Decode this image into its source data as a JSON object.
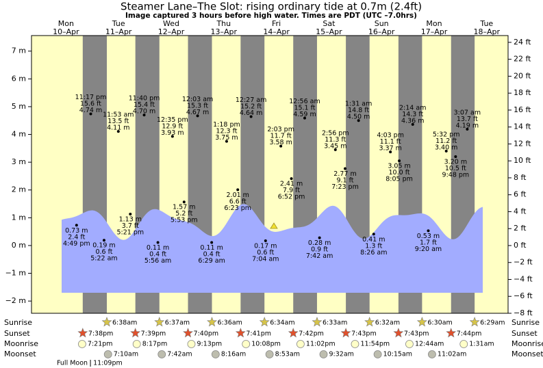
{
  "chart_data": {
    "type": "tide",
    "title": "Steamer Lane–The Slot: rising  ordinary tide at 0.7m (2.4ft)",
    "subtitle": "Image captured 3 hours before high water. Times are PDT (UTC –7.0hrs)",
    "ylim": [
      -2.44,
      7.56
    ],
    "yticks": [
      {
        "value": 7,
        "label": "7 m"
      },
      {
        "value": 6,
        "label": "6 m"
      },
      {
        "value": 5,
        "label": "5 m"
      },
      {
        "value": 4,
        "label": "4 m"
      },
      {
        "value": 3,
        "label": "3 m"
      },
      {
        "value": 2,
        "label": "2 m"
      },
      {
        "value": 1,
        "label": "1 m"
      },
      {
        "value": 0,
        "label": "0 m"
      },
      {
        "value": -1,
        "label": "−1 m"
      },
      {
        "value": -2,
        "label": "−2 m"
      }
    ],
    "y2lim": [
      -8,
      24.8
    ],
    "y2ticks": [
      {
        "value": 24,
        "label": "24 ft"
      },
      {
        "value": 22,
        "label": "22 ft"
      },
      {
        "value": 20,
        "label": "20 ft"
      },
      {
        "value": 18,
        "label": "18 ft"
      },
      {
        "value": 16,
        "label": "16 ft"
      },
      {
        "value": 14,
        "label": "14 ft"
      },
      {
        "value": 12,
        "label": "12 ft"
      },
      {
        "value": 10,
        "label": "10 ft"
      },
      {
        "value": 8,
        "label": "8 ft"
      },
      {
        "value": 6,
        "label": "6 ft"
      },
      {
        "value": 4,
        "label": "4 ft"
      },
      {
        "value": 2,
        "label": "2 ft"
      },
      {
        "value": 0,
        "label": "0 ft"
      },
      {
        "value": -2,
        "label": "−2 ft"
      },
      {
        "value": -4,
        "label": "−4 ft"
      },
      {
        "value": -6,
        "label": "−6 ft"
      },
      {
        "value": -8,
        "label": "−8 ft"
      }
    ],
    "colors": {
      "day": "#ffffc4",
      "night": "#858585",
      "water": "#a2acff",
      "date": "#e8141c",
      "sunrise": "#d6c44a",
      "sunset": "#e0502c",
      "moonrise": "#ffffc8",
      "moonset": "#bdbdae"
    },
    "row_labels": {
      "sunrise": "Sunrise",
      "sunset": "Sunset",
      "moonrise": "Moonrise",
      "moonset": "Moonset"
    },
    "full_moon_label": "Full Moon",
    "days": [
      {
        "weekday": "Mon",
        "date": "10–Apr",
        "sunset": "7:38pm",
        "moonrise": "7:21pm",
        "full_moon": "11:09pm",
        "tides": [
          {
            "time": "4:49 pm",
            "m": 0.73,
            "m_label": "0.73 m",
            "ft_label": "2.4 ft"
          },
          {
            "time": "11:17 pm",
            "m": 4.74,
            "m_label": "4.74 m",
            "ft_label": "15.6 ft"
          }
        ]
      },
      {
        "weekday": "Tue",
        "date": "11–Apr",
        "sunrise": "6:38am",
        "sunset": "7:39pm",
        "moonrise": "8:17pm",
        "moonset": "7:10am",
        "tides": [
          {
            "time": "5:22 am",
            "m": 0.19,
            "m_label": "0.19 m",
            "ft_label": "0.6 ft"
          },
          {
            "time": "11:53 am",
            "m": 4.11,
            "m_label": "4.11 m",
            "ft_label": "13.5 ft"
          },
          {
            "time": "5:21 pm",
            "m": 1.13,
            "m_label": "1.13 m",
            "ft_label": "3.7 ft"
          },
          {
            "time": "11:40 pm",
            "m": 4.7,
            "m_label": "4.70 m",
            "ft_label": "15.4 ft"
          }
        ]
      },
      {
        "weekday": "Wed",
        "date": "12–Apr",
        "sunrise": "6:37am",
        "sunset": "7:40pm",
        "moonrise": "9:13pm",
        "moonset": "7:42am",
        "tides": [
          {
            "time": "5:56 am",
            "m": 0.11,
            "m_label": "0.11 m",
            "ft_label": "0.4 ft"
          },
          {
            "time": "12:35 pm",
            "m": 3.93,
            "m_label": "3.93 m",
            "ft_label": "12.9 ft"
          },
          {
            "time": "5:53 pm",
            "m": 1.57,
            "m_label": "1.57 m",
            "ft_label": "5.2 ft"
          }
        ]
      },
      {
        "weekday": "Thu",
        "date": "13–Apr",
        "sunrise": "6:36am",
        "sunset": "7:41pm",
        "moonrise": "10:08pm",
        "moonset": "8:16am",
        "tides": [
          {
            "time": "12:03 am",
            "m": 4.67,
            "m_label": "4.67 m",
            "ft_label": "15.3 ft"
          },
          {
            "time": "6:29 am",
            "m": 0.11,
            "m_label": "0.11 m",
            "ft_label": "0.4 ft"
          },
          {
            "time": "1:18 pm",
            "m": 3.75,
            "m_label": "3.75 m",
            "ft_label": "12.3 ft"
          },
          {
            "time": "6:23 pm",
            "m": 2.01,
            "m_label": "2.01 m",
            "ft_label": "6.6 ft"
          }
        ]
      },
      {
        "weekday": "Fri",
        "date": "14–Apr",
        "sunrise": "6:34am",
        "sunset": "7:42pm",
        "moonrise": "11:02pm",
        "moonset": "8:53am",
        "tides": [
          {
            "time": "12:27 am",
            "m": 4.64,
            "m_label": "4.64 m",
            "ft_label": "15.2 ft"
          },
          {
            "time": "7:04 am",
            "m": 0.17,
            "m_label": "0.17 m",
            "ft_label": "0.6 ft"
          },
          {
            "time": "2:03 pm",
            "m": 3.58,
            "m_label": "3.58 m",
            "ft_label": "11.7 ft"
          },
          {
            "time": "6:52 pm",
            "m": 2.41,
            "m_label": "2.41 m",
            "ft_label": "7.9 ft"
          }
        ]
      },
      {
        "weekday": "Sat",
        "date": "15–Apr",
        "sunrise": "6:33am",
        "sunset": "7:43pm",
        "moonrise": "11:54pm",
        "moonset": "9:32am",
        "tides": [
          {
            "time": "12:56 am",
            "m": 4.59,
            "m_label": "4.59 m",
            "ft_label": "15.1 ft"
          },
          {
            "time": "7:42 am",
            "m": 0.28,
            "m_label": "0.28 m",
            "ft_label": "0.9 ft"
          },
          {
            "time": "2:56 pm",
            "m": 3.45,
            "m_label": "3.45 m",
            "ft_label": "11.3 ft"
          },
          {
            "time": "7:23 pm",
            "m": 2.77,
            "m_label": "2.77 m",
            "ft_label": "9.1 ft"
          }
        ]
      },
      {
        "weekday": "Sun",
        "date": "16–Apr",
        "sunrise": "6:32am",
        "sunset": "7:43pm",
        "moonset": "10:15am",
        "tides": [
          {
            "time": "1:31 am",
            "m": 4.5,
            "m_label": "4.50 m",
            "ft_label": "14.8 ft"
          },
          {
            "time": "8:26 am",
            "m": 0.41,
            "m_label": "0.41 m",
            "ft_label": "1.3 ft"
          },
          {
            "time": "4:03 pm",
            "m": 3.37,
            "m_label": "3.37 m",
            "ft_label": "11.1 ft"
          },
          {
            "time": "8:05 pm",
            "m": 3.05,
            "m_label": "3.05 m",
            "ft_label": "10.0 ft"
          }
        ]
      },
      {
        "weekday": "Mon",
        "date": "17–Apr",
        "sunrise": "6:30am",
        "sunset": "7:44pm",
        "moonrise": "12:44am",
        "moonset": "11:02am",
        "tides": [
          {
            "time": "2:14 am",
            "m": 4.36,
            "m_label": "4.36 m",
            "ft_label": "14.3 ft"
          },
          {
            "time": "9:20 am",
            "m": 0.53,
            "m_label": "0.53 m",
            "ft_label": "1.7 ft"
          },
          {
            "time": "5:32 pm",
            "m": 3.4,
            "m_label": "3.40 m",
            "ft_label": "11.2 ft"
          },
          {
            "time": "9:48 pm",
            "m": 3.2,
            "m_label": "3.20 m",
            "ft_label": "10.5 ft"
          }
        ]
      },
      {
        "weekday": "Tue",
        "date": "18–Apr",
        "sunrise": "6:29am",
        "moonrise": "1:31am",
        "tides": [
          {
            "time": "3:07 am",
            "m": 4.19,
            "m_label": "4.19 m",
            "ft_label": "13.7 ft"
          }
        ]
      }
    ]
  }
}
